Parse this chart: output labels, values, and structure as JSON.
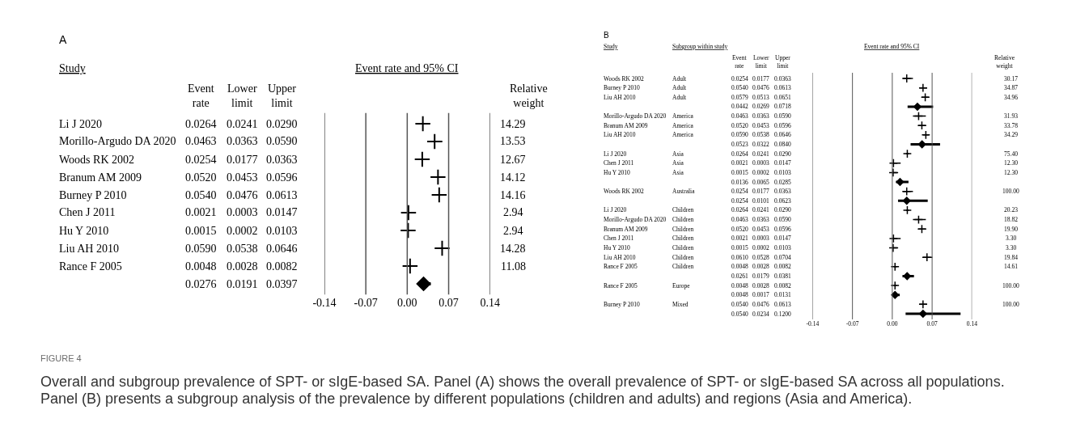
{
  "chart_data": [
    {
      "type": "other",
      "title": "A",
      "subtitle": "Study",
      "categories": [
        "Li J 2020",
        "Morillo-Argudo DA 2020",
        "Woods RK 2002",
        "Branum AM 2009",
        "Burney P 2010",
        "Chen J 2011",
        "Hu Y 2010",
        "Liu AH 2010",
        "Rance F 2005",
        null
      ]
    },
    {
      "type": "other",
      "title": "Event rate",
      "categories": [
        "0.0264",
        "0.0463",
        "0.0254",
        "0.0520",
        "0.0540",
        "0.0021",
        "0.0015",
        "0.0590",
        "0.0048",
        "0.0276"
      ]
    },
    {
      "type": "other",
      "title": "Lower limit",
      "categories": [
        "0.0241",
        "0.0363",
        "0.0177",
        "0.0453",
        "0.0476",
        "0.0003",
        "0.0002",
        "0.0538",
        "0.0028",
        "0.0191"
      ]
    },
    {
      "type": "other",
      "title": "Upper limit",
      "categories": [
        "0.0290",
        "0.0590",
        "0.0363",
        "0.0596",
        "0.0613",
        "0.0147",
        "0.0103",
        "0.0646",
        "0.0082",
        "0.0397"
      ]
    },
    {
      "type": "scatter",
      "title": "Event rate and 95% CI",
      "orientation": "horizontal",
      "grid": "x",
      "tick_labels": "x",
      "xlim": [
        -0.14,
        0.14
      ],
      "xticks": [
        -0.14,
        -0.07,
        {
          "value": 0,
          "label": "0.00"
        },
        0.07,
        0.14
      ],
      "categories": [
        null,
        null,
        null,
        null,
        null,
        null,
        null,
        null,
        null,
        null
      ],
      "series": [
        {
          "marker": "cross",
          "color": "#000000",
          "values": [
            0.0264,
            0.0463,
            0.0254,
            0.052,
            0.054,
            0.0021,
            0.0015,
            0.059,
            0.0048,
            null
          ],
          "errors": [
            [
              0.0241,
              0.029
            ],
            [
              0.0363,
              0.059
            ],
            [
              0.0177,
              0.0363
            ],
            [
              0.0453,
              0.0596
            ],
            [
              0.0476,
              0.0613
            ],
            [
              0.0003,
              0.0147
            ],
            [
              0.0002,
              0.0103
            ],
            [
              0.0538,
              0.0646
            ],
            [
              0.0028,
              0.0082
            ],
            null
          ]
        },
        {
          "marker": "diamond",
          "color": "#000000",
          "values": [
            null,
            null,
            null,
            null,
            null,
            null,
            null,
            null,
            null,
            0.0276
          ],
          "errors": [
            null,
            null,
            null,
            null,
            null,
            null,
            null,
            null,
            null,
            [
              0.0191,
              0.0397
            ]
          ]
        }
      ]
    },
    {
      "type": "other",
      "title": "Relative weight",
      "categories": [
        "14.29",
        "13.53",
        "12.67",
        "14.12",
        "14.16",
        "2.94",
        "2.94",
        "14.28",
        "11.08",
        null
      ]
    },
    {
      "type": "other",
      "title": "B",
      "subtitle": "Study",
      "categories": [
        "Woods RK 2002",
        "Burney P 2010",
        "Liu AH 2010",
        null,
        "Morillo-Argudo DA 2020",
        "Branum AM 2009",
        "Liu AH 2010",
        null,
        "Li J 2020",
        "Chen J 2011",
        "Hu Y 2010",
        null,
        "Woods RK 2002",
        null,
        "Li J 2020",
        "Morillo-Argudo DA 2020",
        "Branum AM 2009",
        "Chen J 2011",
        "Hu Y 2010",
        "Liu AH 2010",
        "Rance F 2005",
        null,
        "Rance F 2005",
        null,
        "Burney P 2010",
        null
      ]
    },
    {
      "type": "other",
      "title": "Subgroup within study",
      "categories": [
        "Adult",
        "Adult",
        "Adult",
        null,
        "America",
        "America",
        "America",
        null,
        "Asia",
        "Asia",
        "Asia",
        null,
        "Australia",
        null,
        "Children",
        "Children",
        "Children",
        "Children",
        "Children",
        "Children",
        "Children",
        null,
        "Europe",
        null,
        "Mixed",
        null
      ]
    },
    {
      "type": "other",
      "title": "Event rate",
      "categories": [
        "0.0254",
        "0.0540",
        "0.0579",
        "0.0442",
        "0.0463",
        "0.0520",
        "0.0590",
        "0.0523",
        "0.0264",
        "0.0021",
        "0.0015",
        "0.0136",
        "0.0254",
        "0.0254",
        "0.0264",
        "0.0463",
        "0.0520",
        "0.0021",
        "0.0015",
        "0.0610",
        "0.0048",
        "0.0261",
        "0.0048",
        "0.0048",
        "0.0540",
        "0.0540"
      ]
    },
    {
      "type": "other",
      "title": "Lower limit",
      "categories": [
        "0.0177",
        "0.0476",
        "0.0513",
        "0.0269",
        "0.0363",
        "0.0453",
        "0.0538",
        "0.0322",
        "0.0241",
        "0.0003",
        "0.0002",
        "0.0065",
        "0.0177",
        "0.0101",
        "0.0241",
        "0.0363",
        "0.0453",
        "0.0003",
        "0.0002",
        "0.0528",
        "0.0028",
        "0.0179",
        "0.0028",
        "0.0017",
        "0.0476",
        "0.0234"
      ]
    },
    {
      "type": "other",
      "title": "Upper limit",
      "categories": [
        "0.0363",
        "0.0613",
        "0.0651",
        "0.0718",
        "0.0590",
        "0.0596",
        "0.0646",
        "0.0840",
        "0.0290",
        "0.0147",
        "0.0103",
        "0.0285",
        "0.0363",
        "0.0623",
        "0.0290",
        "0.0590",
        "0.0596",
        "0.0147",
        "0.0103",
        "0.0704",
        "0.0082",
        "0.0381",
        "0.0082",
        "0.0131",
        "0.0613",
        "0.1200"
      ]
    },
    {
      "type": "scatter",
      "title": "Event rate and 95% CI",
      "orientation": "horizontal",
      "grid": "x",
      "tick_labels": "x",
      "xlim": [
        -0.14,
        0.14
      ],
      "xticks": [
        -0.14,
        -0.07,
        {
          "value": 0,
          "label": "0.00"
        },
        0.07,
        0.14
      ],
      "categories": [
        null,
        null,
        null,
        null,
        null,
        null,
        null,
        null,
        null,
        null,
        null,
        null,
        null,
        null,
        null,
        null,
        null,
        null,
        null,
        null,
        null,
        null,
        null,
        null,
        null,
        null
      ],
      "series": [
        {
          "marker": "cross",
          "color": "#000000",
          "values": [
            0.0254,
            0.054,
            0.0579,
            null,
            0.0463,
            0.052,
            0.059,
            null,
            0.0264,
            0.0021,
            0.0015,
            null,
            0.0254,
            null,
            0.0264,
            0.0463,
            0.052,
            0.0021,
            0.0015,
            0.061,
            0.0048,
            null,
            0.0048,
            null,
            0.054,
            null
          ],
          "errors": [
            [
              0.0177,
              0.0363
            ],
            [
              0.0476,
              0.0613
            ],
            [
              0.0513,
              0.0651
            ],
            null,
            [
              0.0363,
              0.059
            ],
            [
              0.0453,
              0.0596
            ],
            [
              0.0538,
              0.0646
            ],
            null,
            [
              0.0241,
              0.029
            ],
            [
              0.0003,
              0.0147
            ],
            [
              0.0002,
              0.0103
            ],
            null,
            [
              0.0177,
              0.0363
            ],
            null,
            [
              0.0241,
              0.029
            ],
            [
              0.0363,
              0.059
            ],
            [
              0.0453,
              0.0596
            ],
            [
              0.0003,
              0.0147
            ],
            [
              0.0002,
              0.0103
            ],
            [
              0.0528,
              0.0704
            ],
            [
              0.0028,
              0.0082
            ],
            null,
            [
              0.0028,
              0.0082
            ],
            null,
            [
              0.0476,
              0.0613
            ],
            null
          ]
        },
        {
          "marker": "diamond",
          "color": "#000000",
          "values": [
            null,
            null,
            null,
            0.0442,
            null,
            null,
            null,
            0.0523,
            null,
            null,
            null,
            0.0136,
            null,
            0.0254,
            null,
            null,
            null,
            null,
            null,
            null,
            null,
            0.0261,
            null,
            0.0048,
            null,
            0.054
          ],
          "errors": [
            null,
            null,
            null,
            [
              0.0269,
              0.0718
            ],
            null,
            null,
            null,
            [
              0.0322,
              0.084
            ],
            null,
            null,
            null,
            [
              0.0065,
              0.0285
            ],
            null,
            [
              0.0101,
              0.0623
            ],
            null,
            null,
            null,
            null,
            null,
            null,
            null,
            [
              0.0179,
              0.0381
            ],
            null,
            [
              0.0017,
              0.0131
            ],
            null,
            [
              0.0234,
              0.12
            ]
          ]
        }
      ]
    },
    {
      "type": "other",
      "title": "Relative weight",
      "categories": [
        "30.17",
        "34.87",
        "34.96",
        null,
        "31.93",
        "33.78",
        "34.29",
        null,
        "75.40",
        "12.30",
        "12.30",
        null,
        "100.00",
        null,
        "20.23",
        "18.82",
        "19.90",
        "3.30",
        "3.30",
        "19.84",
        "14.61",
        null,
        "100.00",
        null,
        "100.00",
        null
      ],
      "annotations": [
        "FIGURE 4",
        "Overall and subgroup prevalence of SPT- or sIgE-based SA. Panel (A) shows the overall prevalence of SPT- or sIgE-based SA across all populations.",
        "Panel (B) presents a subgroup analysis of the prevalence by different populations (children and adults) and regions (Asia and America)."
      ]
    }
  ]
}
